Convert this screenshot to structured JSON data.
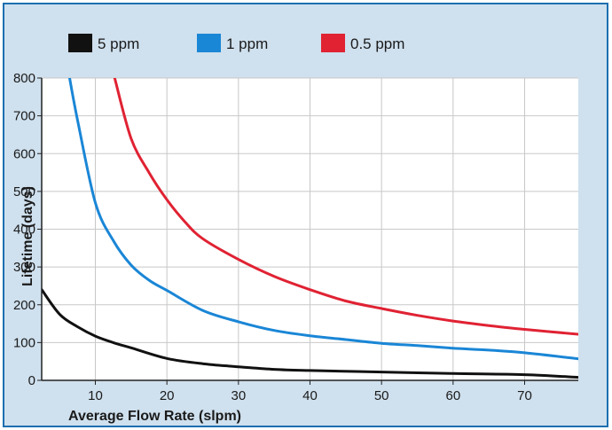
{
  "chart_data": {
    "type": "line",
    "title": "",
    "xlabel": "Average Flow Rate (slpm)",
    "ylabel": "Lifetime (days)",
    "xlim": [
      2.5,
      77.5
    ],
    "ylim": [
      0,
      800
    ],
    "xticks": [
      10,
      20,
      30,
      40,
      50,
      60,
      70
    ],
    "yticks": [
      0,
      100,
      200,
      300,
      400,
      500,
      600,
      700,
      800
    ],
    "grid": true,
    "legend_position": "top",
    "series": [
      {
        "name": "5 ppm",
        "color": "#111111",
        "x": [
          2.5,
          5,
          7.5,
          10,
          12.5,
          15,
          20,
          25,
          30,
          35,
          40,
          50,
          60,
          70,
          77.5
        ],
        "y": [
          240,
          175,
          142,
          117,
          100,
          86,
          58,
          44,
          36,
          29,
          26,
          22,
          18,
          15,
          8
        ]
      },
      {
        "name": "1 ppm",
        "color": "#1a86d6",
        "x": [
          6.4,
          7.5,
          10,
          12.5,
          15,
          17.5,
          20,
          25,
          30,
          35,
          40,
          45,
          50,
          55,
          60,
          65,
          70,
          77.5
        ],
        "y": [
          800,
          690,
          470,
          370,
          305,
          265,
          238,
          185,
          155,
          132,
          118,
          108,
          98,
          92,
          85,
          80,
          73,
          57
        ]
      },
      {
        "name": "0.5 ppm",
        "color": "#e02233",
        "x": [
          12.7,
          15,
          17.5,
          20,
          22.5,
          25,
          30,
          35,
          40,
          45,
          50,
          55,
          60,
          65,
          70,
          77.5
        ],
        "y": [
          800,
          640,
          550,
          478,
          420,
          375,
          320,
          275,
          240,
          210,
          190,
          172,
          157,
          145,
          135,
          122
        ]
      }
    ]
  }
}
